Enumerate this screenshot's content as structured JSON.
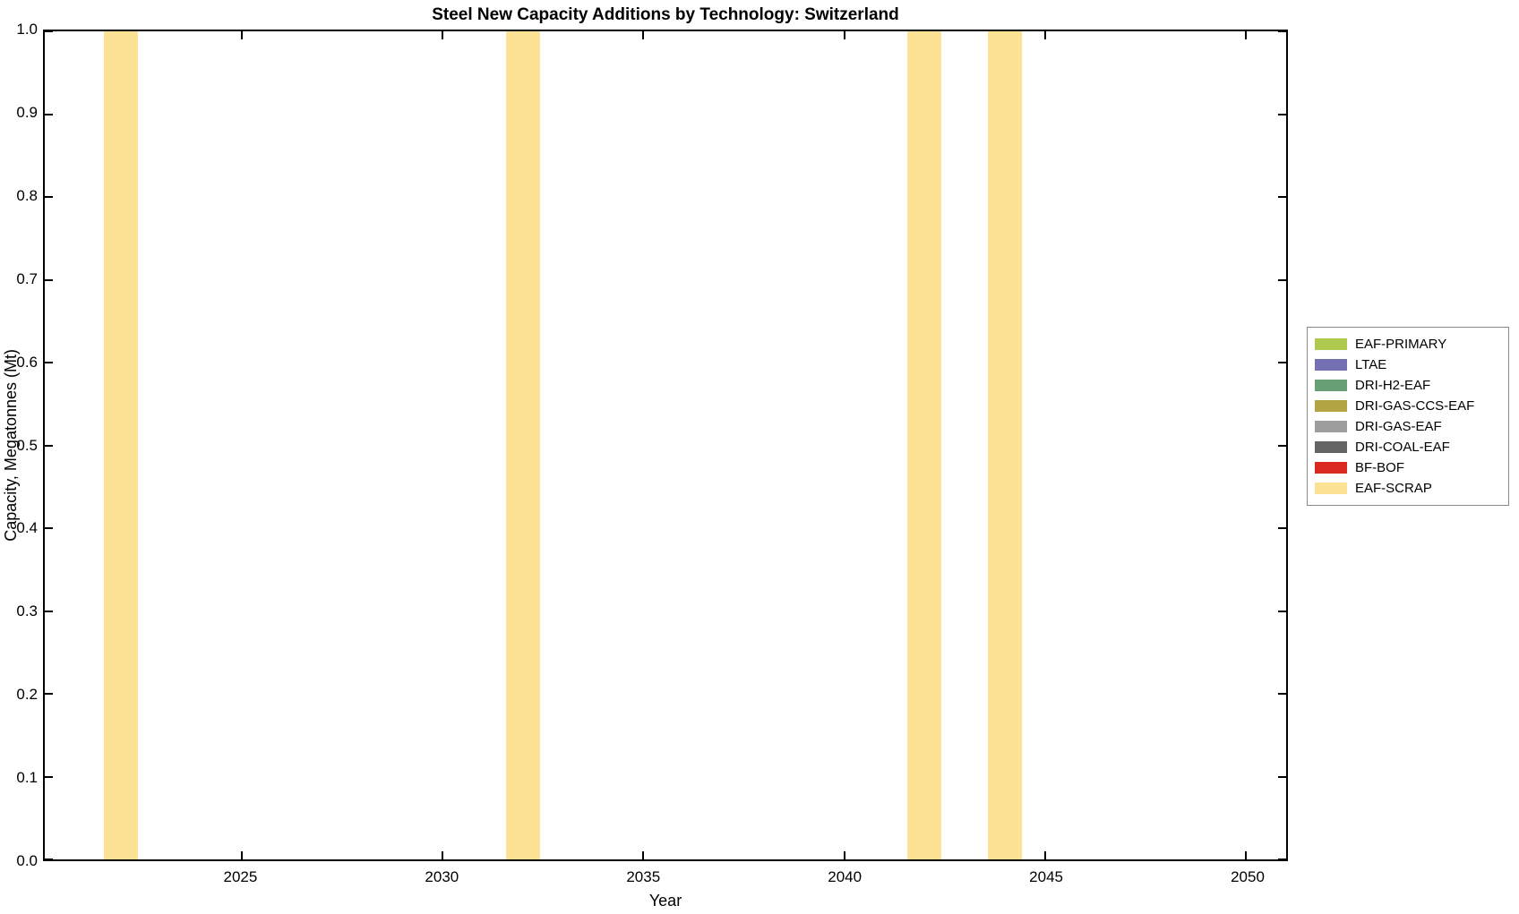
{
  "chart_data": {
    "type": "bar",
    "title": "Steel New Capacity Additions by Technology: Switzerland",
    "xlabel": "Year",
    "ylabel": "Capacity, Megatonnes (Mt)",
    "xlim": [
      2020.1,
      2051.0
    ],
    "ylim": [
      0,
      1
    ],
    "xticks": [
      2025,
      2030,
      2035,
      2040,
      2045,
      2050
    ],
    "yticks": [
      0,
      0.1,
      0.2,
      0.3,
      0.4,
      0.5,
      0.6,
      0.7,
      0.8,
      0.9,
      1.0
    ],
    "ytick_labels": [
      "0.0",
      "0.1",
      "0.2",
      "0.3",
      "0.4",
      "0.5",
      "0.6",
      "0.7",
      "0.8",
      "0.9",
      "1.0"
    ],
    "grid": false,
    "bar_width_years": 0.85,
    "legend_position": "right-outside",
    "series": [
      {
        "name": "EAF-PRIMARY",
        "color": "#afc84e",
        "data": []
      },
      {
        "name": "LTAE",
        "color": "#7570b3",
        "data": []
      },
      {
        "name": "DRI-H2-EAF",
        "color": "#689f74",
        "data": []
      },
      {
        "name": "DRI-GAS-CCS-EAF",
        "color": "#b2a443",
        "data": []
      },
      {
        "name": "DRI-GAS-EAF",
        "color": "#9d9d9d",
        "data": []
      },
      {
        "name": "DRI-COAL-EAF",
        "color": "#646464",
        "data": []
      },
      {
        "name": "BF-BOF",
        "color": "#da2a20",
        "data": []
      },
      {
        "name": "EAF-SCRAP",
        "color": "#fbe295",
        "data": [
          {
            "year": 2022,
            "value": 1.0
          },
          {
            "year": 2032,
            "value": 1.0
          },
          {
            "year": 2042,
            "value": 1.0
          },
          {
            "year": 2044,
            "value": 1.0
          }
        ]
      }
    ]
  }
}
